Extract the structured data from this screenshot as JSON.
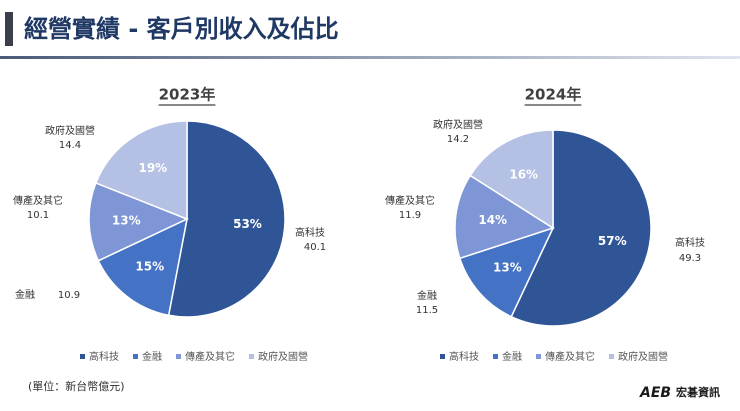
{
  "title": "經營實績 - 客戶別收入及佔比",
  "chart_data": [
    {
      "type": "pie",
      "title": "2023年",
      "categories": [
        "高科技",
        "金融",
        "傳產及其它",
        "政府及國營"
      ],
      "values": [
        53,
        15,
        13,
        19
      ],
      "value_labels": [
        "53%",
        "15%",
        "13%",
        "19%"
      ],
      "amounts": [
        40.1,
        10.9,
        10.1,
        14.4
      ],
      "colors": [
        "#2f5597",
        "#4472c4",
        "#7f96d6",
        "#b4c0e4"
      ],
      "legend": "bottom"
    },
    {
      "type": "pie",
      "title": "2024年",
      "categories": [
        "高科技",
        "金融",
        "傳產及其它",
        "政府及國營"
      ],
      "values": [
        57,
        13,
        14,
        16
      ],
      "value_labels": [
        "57%",
        "13%",
        "14%",
        "16%"
      ],
      "amounts": [
        49.3,
        11.5,
        11.9,
        14.2
      ],
      "colors": [
        "#2f5597",
        "#4472c4",
        "#7f96d6",
        "#b4c0e4"
      ],
      "legend": "bottom"
    }
  ],
  "footnote": "(單位：新台幣億元)",
  "logo": {
    "mark": "AEB",
    "text": "宏碁資訊"
  }
}
